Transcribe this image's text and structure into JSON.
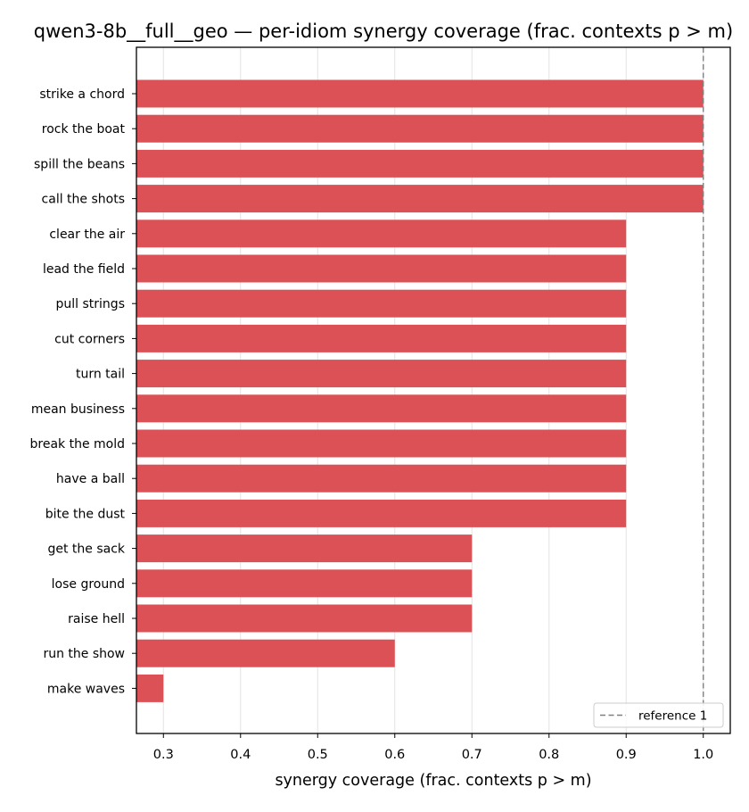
{
  "chart_data": {
    "type": "bar",
    "orientation": "horizontal",
    "title": "qwen3-8b__full__geo — per-idiom synergy coverage  (frac. contexts p > m)",
    "xlabel": "synergy coverage  (frac. contexts p > m)",
    "ylabel": "",
    "categories": [
      "strike a chord",
      "rock the boat",
      "spill the beans",
      "call the shots",
      "clear the air",
      "lead the field",
      "pull strings",
      "cut corners",
      "turn tail",
      "mean business",
      "break the mold",
      "have a ball",
      "bite the dust",
      "get the sack",
      "lose ground",
      "raise hell",
      "run the show",
      "make waves"
    ],
    "values": [
      1.0,
      1.0,
      1.0,
      1.0,
      0.9,
      0.9,
      0.9,
      0.9,
      0.9,
      0.9,
      0.9,
      0.9,
      0.9,
      0.7,
      0.7,
      0.7,
      0.6,
      0.3
    ],
    "xlim": [
      0.265,
      1.035
    ],
    "xticks": [
      "0.3",
      "0.4",
      "0.5",
      "0.6",
      "0.7",
      "0.8",
      "0.9",
      "1.0"
    ],
    "grid": "x",
    "bar_color": "#dc5155",
    "reference": {
      "value": 1.0,
      "label": "reference 1",
      "style": "dashed",
      "color": "#808080"
    },
    "legend": {
      "placement": "lower-right",
      "entries": [
        "reference 1"
      ]
    }
  }
}
